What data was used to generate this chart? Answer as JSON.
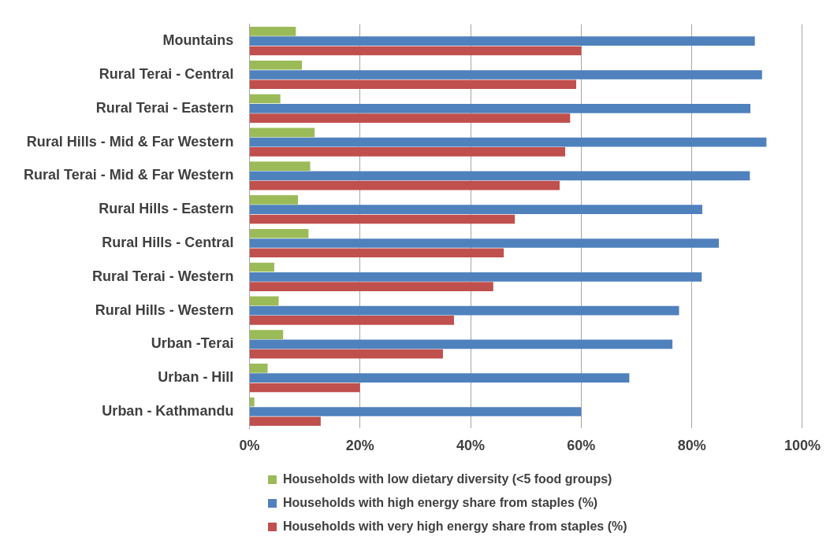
{
  "chart_data": {
    "type": "bar",
    "orientation": "horizontal",
    "categories": [
      "Mountains",
      "Rural Terai - Central",
      "Rural Terai - Eastern",
      "Rural Hills - Mid & Far Western",
      "Rural Terai - Mid & Far Western",
      "Rural Hills - Eastern",
      "Rural Hills - Central",
      "Rural Terai - Western",
      "Rural Hills - Western",
      "Urban -Terai",
      "Urban - Hill",
      "Urban - Kathmandu"
    ],
    "series": [
      {
        "name": "Households with low dietary diversity (<5 food groups)",
        "color": "#9bbb59",
        "values": [
          8.4,
          9.5,
          5.6,
          11.8,
          11.0,
          8.8,
          10.7,
          4.5,
          5.3,
          6.1,
          3.3,
          0.9
        ]
      },
      {
        "name": "Households with high energy share from staples (%)",
        "color": "#4f81bd",
        "values": [
          91.4,
          92.7,
          90.6,
          93.5,
          90.5,
          81.9,
          84.9,
          81.8,
          77.7,
          76.5,
          68.7,
          60
        ]
      },
      {
        "name": "Households with very high energy share from staples (%)",
        "color": "#c0504d",
        "values": [
          60,
          59.1,
          58.0,
          57.1,
          56.1,
          48.0,
          46.0,
          44.1,
          37.0,
          35.0,
          20,
          12.9
        ]
      }
    ],
    "xlim": [
      0,
      100
    ],
    "xticks": [
      {
        "value": 0,
        "label": "0%"
      },
      {
        "value": 20,
        "label": "20%"
      },
      {
        "value": 40,
        "label": "40%"
      },
      {
        "value": 60,
        "label": "60%"
      },
      {
        "value": 80,
        "label": "80%"
      },
      {
        "value": 100,
        "label": "100%"
      }
    ],
    "grid": "x",
    "legend": "bottom"
  }
}
